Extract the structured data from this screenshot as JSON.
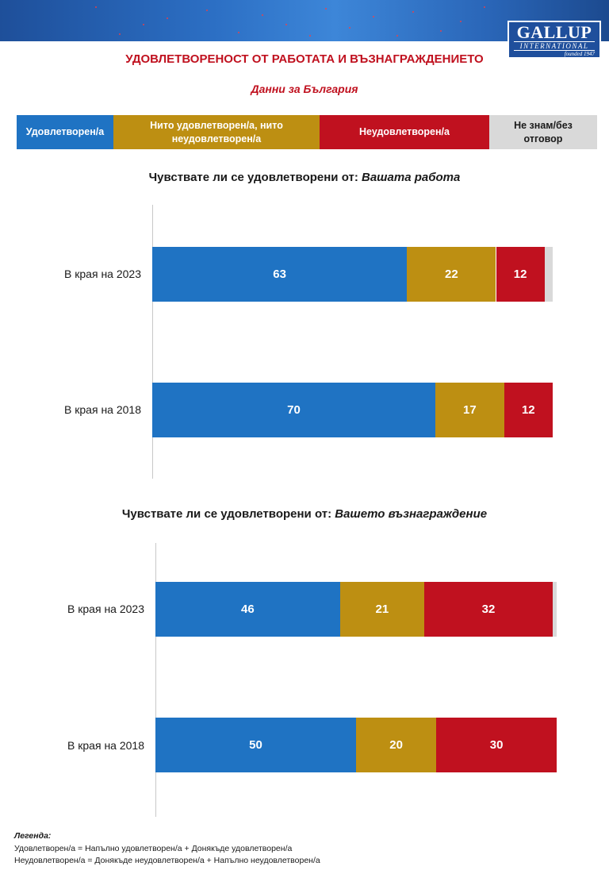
{
  "header": {
    "logo_main": "GALLUP",
    "logo_sub": "INTERNATIONAL",
    "logo_founded": "founded 1947"
  },
  "title": "УДОВЛЕТВОРЕНОСТ ОТ РАБОТАТА И ВЪЗНАГРАЖДЕНИЕТО",
  "subtitle": "Данни за България",
  "colors": {
    "satisfied": "#1f73c3",
    "neutral": "#bd8f12",
    "dissatisfied": "#c0111f",
    "dont_know": "#d9d9d9"
  },
  "legend": [
    {
      "key": "satisfied",
      "label": "Удовлетворен/а"
    },
    {
      "key": "neutral",
      "label": "Нито удовлетворен/а, нито неудовлетворен/а"
    },
    {
      "key": "dissatisfied",
      "label": "Неудовлетворен/а"
    },
    {
      "key": "dont_know",
      "label": "Не знам/без отговор"
    }
  ],
  "chart_data": [
    {
      "type": "bar",
      "orientation": "horizontal-stacked",
      "title_prefix": "Чувствате ли се удовлетворени от:",
      "title_emph": "Вашата работа",
      "categories": [
        "В края на 2023",
        "В края на 2018"
      ],
      "series": [
        {
          "name": "Удовлетворен/а",
          "key": "satisfied",
          "values": [
            63,
            70
          ]
        },
        {
          "name": "Нито удовлетворен/а, нито неудовлетворен/а",
          "key": "neutral",
          "values": [
            22,
            17
          ]
        },
        {
          "name": "Неудовлетворен/а",
          "key": "dissatisfied",
          "values": [
            12,
            12
          ]
        },
        {
          "name": "Не знам/без отговор",
          "key": "dont_know",
          "values": [
            2,
            0
          ]
        }
      ],
      "xlim": [
        0,
        100
      ]
    },
    {
      "type": "bar",
      "orientation": "horizontal-stacked",
      "title_prefix": "Чувствате ли се удовлетворени от:",
      "title_emph": "Вашето възнаграждение",
      "categories": [
        "В края на 2023",
        "В края на 2018"
      ],
      "series": [
        {
          "name": "Удовлетворен/а",
          "key": "satisfied",
          "values": [
            46,
            50
          ]
        },
        {
          "name": "Нито удовлетворен/а, нито неудовлетворен/а",
          "key": "neutral",
          "values": [
            21,
            20
          ]
        },
        {
          "name": "Неудовлетворен/а",
          "key": "dissatisfied",
          "values": [
            32,
            30
          ]
        },
        {
          "name": "Не знам/без отговор",
          "key": "dont_know",
          "values": [
            1,
            0
          ]
        }
      ],
      "xlim": [
        0,
        100
      ]
    }
  ],
  "footnotes": {
    "heading": "Легенда:",
    "line1": "Удовлетворен/а = Напълно удовлетворен/а + Донякъде удовлетворен/а",
    "line2": "Неудовлетворен/а = Донякъде неудовлетворен/а + Напълно неудовлетворен/а"
  }
}
